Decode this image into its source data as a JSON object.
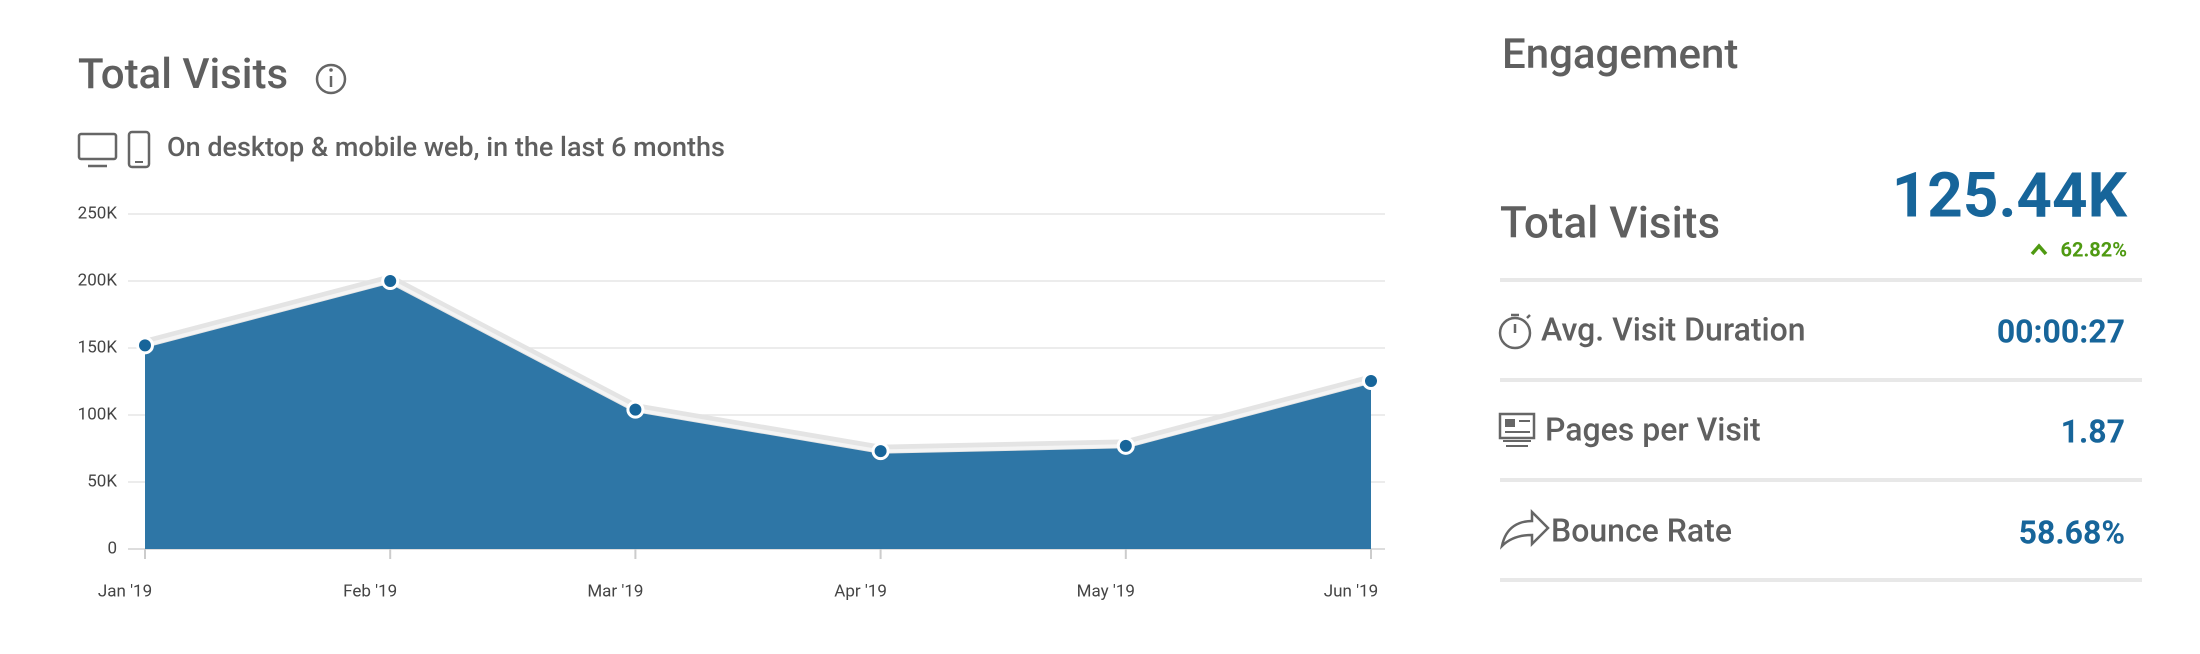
{
  "title": "Total Visits",
  "subtitle": "On desktop & mobile web, in the last 6 months",
  "chart_data": {
    "type": "area",
    "categories": [
      "Jan '19",
      "Feb '19",
      "Mar '19",
      "Apr '19",
      "May '19",
      "Jun '19"
    ],
    "values": [
      152000,
      200000,
      104000,
      73000,
      77000,
      125400
    ],
    "color": "#2e76a6",
    "ylim": [
      0,
      250000
    ],
    "yticks": [
      0,
      {
        "value": 50000,
        "label": "50K"
      },
      {
        "value": 100000,
        "label": "100K"
      },
      {
        "value": 150000,
        "label": "150K"
      },
      {
        "value": 200000,
        "label": "200K"
      },
      {
        "value": 250000,
        "label": "250K"
      }
    ],
    "grid": true
  },
  "engagement": {
    "title": "Engagement",
    "total_visits": {
      "label": "Total Visits",
      "value": "125.44K",
      "change": "62.82%"
    },
    "metrics": [
      {
        "label": "Avg. Visit Duration",
        "value": "00:00:27"
      },
      {
        "label": "Pages per Visit",
        "value": "1.87"
      },
      {
        "label": "Bounce Rate",
        "value": "58.68%"
      }
    ]
  }
}
